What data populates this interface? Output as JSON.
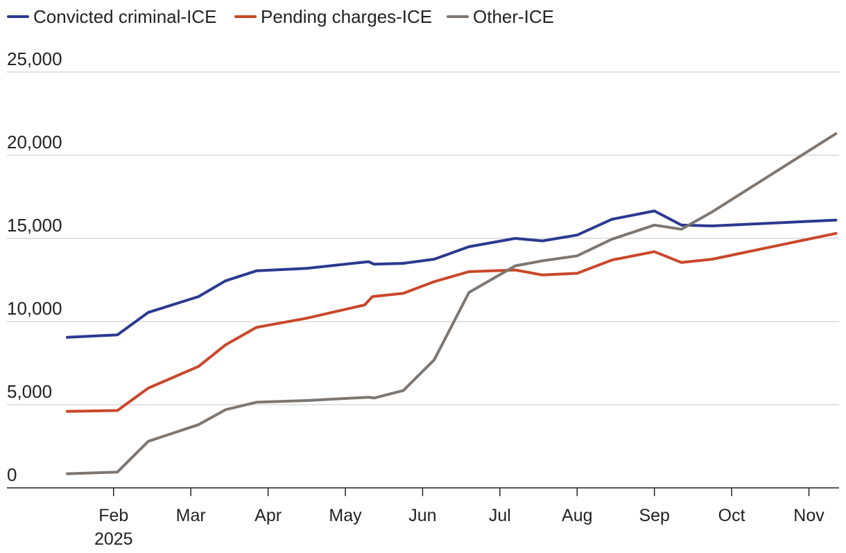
{
  "chart_data": {
    "type": "line",
    "title": "",
    "xlabel": "",
    "ylabel": "",
    "ylim": [
      0,
      25000
    ],
    "y_ticks": [
      0,
      5000,
      10000,
      15000,
      20000,
      25000
    ],
    "y_tick_labels": [
      "0",
      "5,000",
      "10,000",
      "15,000",
      "20,000",
      "25,000"
    ],
    "x_range": [
      0.62,
      11.39
    ],
    "x_ticks": [
      {
        "x": 2,
        "label": "Feb",
        "sublabel": "2025"
      },
      {
        "x": 3,
        "label": "Mar"
      },
      {
        "x": 4,
        "label": "Apr"
      },
      {
        "x": 5,
        "label": "May"
      },
      {
        "x": 6,
        "label": "Jun"
      },
      {
        "x": 7,
        "label": "Jul"
      },
      {
        "x": 8,
        "label": "Aug"
      },
      {
        "x": 9,
        "label": "Sep"
      },
      {
        "x": 10,
        "label": "Oct"
      },
      {
        "x": 11,
        "label": "Nov"
      }
    ],
    "legend_position": "top-left",
    "series": [
      {
        "name": "Convicted criminal-ICE",
        "color": "#2b3990",
        "points": [
          [
            1.4,
            9050
          ],
          [
            2.05,
            9200
          ],
          [
            2.45,
            10550
          ],
          [
            3.1,
            11500
          ],
          [
            3.45,
            12450
          ],
          [
            3.85,
            13050
          ],
          [
            4.5,
            13200
          ],
          [
            5.3,
            13600
          ],
          [
            5.37,
            13450
          ],
          [
            5.75,
            13500
          ],
          [
            6.15,
            13750
          ],
          [
            6.6,
            14500
          ],
          [
            7.2,
            15000
          ],
          [
            7.55,
            14850
          ],
          [
            8.0,
            15200
          ],
          [
            8.45,
            16150
          ],
          [
            9.0,
            16650
          ],
          [
            9.35,
            15800
          ],
          [
            9.75,
            15750
          ],
          [
            11.35,
            16100
          ]
        ]
      },
      {
        "name": "Pending charges-ICE",
        "color": "#c9472a",
        "points": [
          [
            1.4,
            4600
          ],
          [
            2.05,
            4650
          ],
          [
            2.45,
            6000
          ],
          [
            3.1,
            7300
          ],
          [
            3.45,
            8600
          ],
          [
            3.85,
            9650
          ],
          [
            4.5,
            10200
          ],
          [
            5.25,
            11000
          ],
          [
            5.35,
            11500
          ],
          [
            5.75,
            11700
          ],
          [
            6.15,
            12400
          ],
          [
            6.6,
            13000
          ],
          [
            7.2,
            13100
          ],
          [
            7.55,
            12800
          ],
          [
            8.0,
            12900
          ],
          [
            8.45,
            13700
          ],
          [
            9.0,
            14200
          ],
          [
            9.35,
            13550
          ],
          [
            9.75,
            13750
          ],
          [
            11.35,
            15300
          ]
        ]
      },
      {
        "name": "Other-ICE",
        "color": "#7d7671",
        "points": [
          [
            1.4,
            850
          ],
          [
            2.05,
            950
          ],
          [
            2.45,
            2800
          ],
          [
            3.1,
            3800
          ],
          [
            3.45,
            4700
          ],
          [
            3.85,
            5150
          ],
          [
            4.5,
            5250
          ],
          [
            5.3,
            5450
          ],
          [
            5.37,
            5400
          ],
          [
            5.75,
            5850
          ],
          [
            6.15,
            7700
          ],
          [
            6.6,
            11750
          ],
          [
            7.2,
            13350
          ],
          [
            7.55,
            13650
          ],
          [
            8.0,
            13950
          ],
          [
            8.45,
            14950
          ],
          [
            9.0,
            15800
          ],
          [
            9.35,
            15550
          ],
          [
            9.75,
            16600
          ],
          [
            11.35,
            21300
          ]
        ]
      }
    ]
  }
}
